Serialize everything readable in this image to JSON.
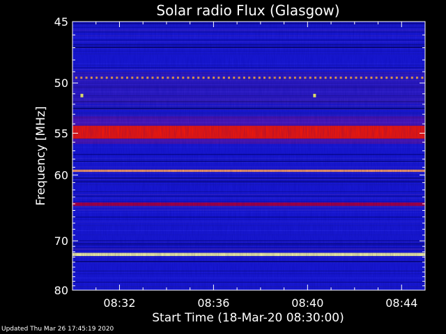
{
  "chart_data": {
    "type": "heatmap",
    "title": "Solar radio Flux (Glasgow)",
    "xlabel": "Start Time (18-Mar-20 08:30:00)",
    "ylabel": "Frequency [MHz]",
    "x_tick_labels": [
      "08:32",
      "08:36",
      "08:40",
      "08:44"
    ],
    "x_tick_minutes": [
      2,
      6,
      10,
      14
    ],
    "xlim_minutes": [
      0,
      15
    ],
    "y_tick_labels": [
      "45",
      "50",
      "55",
      "60",
      "70",
      "80"
    ],
    "y_tick_values": [
      45,
      50,
      55,
      60,
      70,
      80
    ],
    "ylim": [
      45,
      80
    ],
    "y_scale": "reciprocal",
    "background_color": "#1a1ad6",
    "bands": [
      {
        "freq_low": 54.2,
        "freq_high": 55.6,
        "color": "#ff1a00"
      },
      {
        "freq_low": 59.3,
        "freq_high": 59.6,
        "color": "#ffa060"
      },
      {
        "freq_low": 63.8,
        "freq_high": 64.3,
        "color": "#b0003a"
      },
      {
        "freq_low": 72.2,
        "freq_high": 72.8,
        "color": "#ffffa0"
      }
    ],
    "bursts": [
      {
        "minute": 0.4,
        "freq": 51.2,
        "color": "#ffff60"
      },
      {
        "minute": 10.3,
        "freq": 51.2,
        "color": "#ffff60"
      }
    ],
    "periodic_line": {
      "freq": 49.5,
      "color": "#ffb040"
    }
  },
  "footer": {
    "updated": "Updated Thu Mar 26 17:45:19 2020"
  }
}
